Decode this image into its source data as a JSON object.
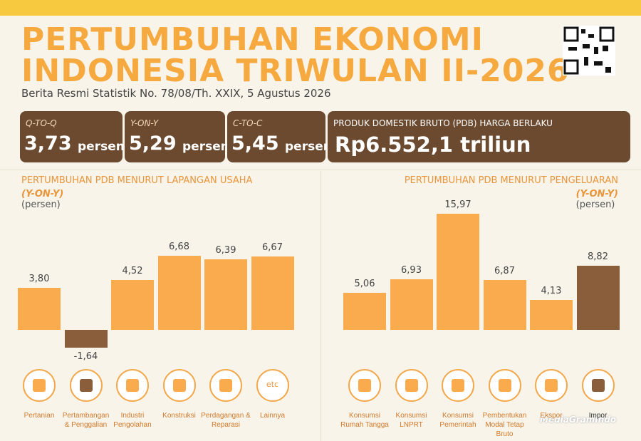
{
  "header": {
    "title_line1": "PERTUMBUHAN EKONOMI",
    "title_line2": "INDONESIA TRIWULAN II-2026",
    "subtitle": "Berita Resmi Statistik No. 78/08/Th. XXIX, 5 Agustus 2026"
  },
  "stats": [
    {
      "label": "Q-TO-Q",
      "value": "3,73",
      "unit": "persen"
    },
    {
      "label": "Y-ON-Y",
      "value": "5,29",
      "unit": "persen"
    },
    {
      "label": "C-TO-C",
      "value": "5,45",
      "unit": "persen"
    },
    {
      "label": "PRODUK DOMESTIK BRUTO (PDB) HARGA BERLAKU",
      "value": "Rp6.552,1 triliun"
    }
  ],
  "icon_labels": [
    "etc"
  ],
  "watermark": "MediaGramIndo",
  "chart_data": [
    {
      "type": "bar",
      "title": "PERTUMBUHAN PDB MENURUT LAPANGAN USAHA",
      "subtitle_em": "(Y-ON-Y)",
      "subtitle": "(persen)",
      "categories": [
        "Pertanian",
        "Pertambangan & Penggalian",
        "Industri Pengolahan",
        "Konstruksi",
        "Perdagangan & Reparasi",
        "Lainnya"
      ],
      "values": [
        3.8,
        -1.64,
        4.52,
        6.68,
        6.39,
        6.67
      ],
      "value_labels": [
        "3,80",
        "-1,64",
        "4,52",
        "6,68",
        "6,39",
        "6,67"
      ],
      "colors": [
        "#f9ab4e",
        "#8a5d3b",
        "#f9ab4e",
        "#f9ab4e",
        "#f9ab4e",
        "#f9ab4e"
      ]
    },
    {
      "type": "bar",
      "title": "PERTUMBUHAN PDB MENURUT PENGELUARAN",
      "subtitle_em": "(Y-ON-Y)",
      "subtitle": "(persen)",
      "categories": [
        "Konsumsi Rumah Tangga",
        "Konsumsi LNPRT",
        "Konsumsi Pemerintah",
        "Pembentukan Modal Tetap Bruto",
        "Ekspor",
        "Impor"
      ],
      "values": [
        5.06,
        6.93,
        15.97,
        6.87,
        4.13,
        8.82
      ],
      "value_labels": [
        "5,06",
        "6,93",
        "15,97",
        "6,87",
        "4,13",
        "8,82"
      ],
      "colors": [
        "#f9ab4e",
        "#f9ab4e",
        "#f9ab4e",
        "#f9ab4e",
        "#f9ab4e",
        "#8a5d3b"
      ]
    }
  ]
}
